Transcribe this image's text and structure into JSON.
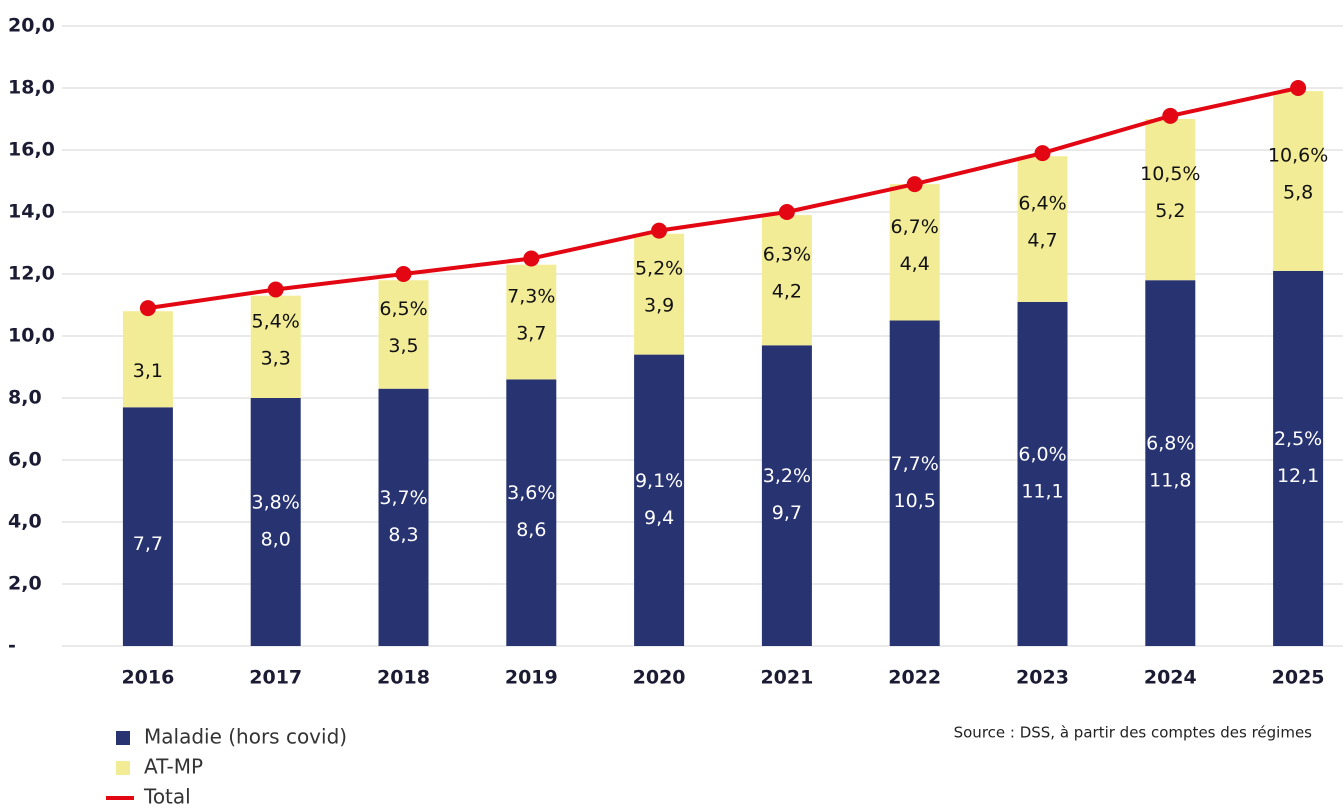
{
  "chart_data": {
    "type": "stacked_bar_line",
    "categories": [
      "2016",
      "2017",
      "2018",
      "2019",
      "2020",
      "2021",
      "2022",
      "2023",
      "2024",
      "2025"
    ],
    "series": [
      {
        "name": "Maladie (hors covid)",
        "color": "#283372",
        "kind": "bar",
        "values": [
          7.7,
          8.0,
          8.3,
          8.6,
          9.4,
          9.7,
          10.5,
          11.1,
          11.8,
          12.1
        ],
        "value_labels": [
          "7,7",
          "8,0",
          "8,3",
          "8,6",
          "9,4",
          "9,7",
          "10,5",
          "11,1",
          "11,8",
          "12,1"
        ],
        "growth_labels": [
          null,
          "3,8%",
          "3,7%",
          "3,6%",
          "9,1%",
          "3,2%",
          "7,7%",
          "6,0%",
          "6,8%",
          "2,5%"
        ]
      },
      {
        "name": "AT-MP",
        "color": "#f3ec97",
        "kind": "bar",
        "values": [
          3.1,
          3.3,
          3.5,
          3.7,
          3.9,
          4.2,
          4.4,
          4.7,
          5.2,
          5.8
        ],
        "value_labels": [
          "3,1",
          "3,3",
          "3,5",
          "3,7",
          "3,9",
          "4,2",
          "4,4",
          "4,7",
          "5,2",
          "5,8"
        ],
        "growth_labels": [
          null,
          "5,4%",
          "6,5%",
          "7,3%",
          "5,2%",
          "6,3%",
          "6,7%",
          "6,4%",
          "10,5%",
          "10,6%"
        ]
      },
      {
        "name": "Total",
        "color": "#e30613",
        "kind": "line",
        "values": [
          10.9,
          11.5,
          12.0,
          12.5,
          13.4,
          14.0,
          14.9,
          15.9,
          17.1,
          18.0
        ]
      }
    ],
    "ylim": [
      0,
      20
    ],
    "yticks": [
      {
        "value": 0,
        "label": "-"
      },
      {
        "value": 2,
        "label": "2,0"
      },
      {
        "value": 4,
        "label": "4,0"
      },
      {
        "value": 6,
        "label": "6,0"
      },
      {
        "value": 8,
        "label": "8,0"
      },
      {
        "value": 10,
        "label": "10,0"
      },
      {
        "value": 12,
        "label": "12,0"
      },
      {
        "value": 14,
        "label": "14,0"
      },
      {
        "value": 16,
        "label": "16,0"
      },
      {
        "value": 18,
        "label": "18,0"
      },
      {
        "value": 20,
        "label": "20,0"
      }
    ],
    "grid": true,
    "source": "Source : DSS, à partir des comptes des régimes"
  }
}
